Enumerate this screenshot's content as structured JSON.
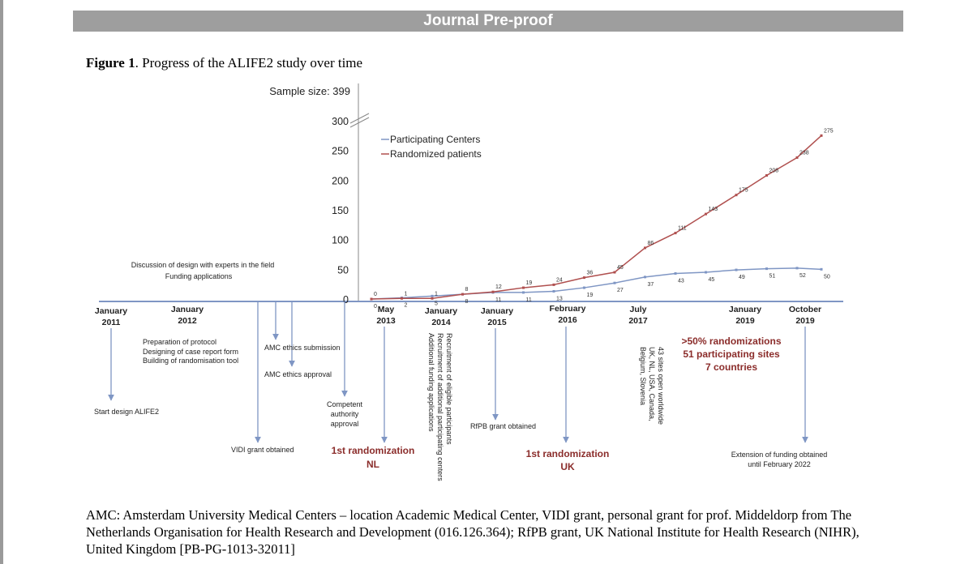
{
  "header": {
    "banner": "Journal Pre-proof"
  },
  "figure": {
    "label": "Figure 1",
    "title": ". Progress of the ALIFE2 study over time"
  },
  "chart_data": {
    "type": "line",
    "title": "",
    "sample_size_label": "Sample size: 399",
    "ylim": [
      0,
      300
    ],
    "y_ticks": [
      "300",
      "250",
      "200",
      "150",
      "100",
      "50",
      "0"
    ],
    "legend_position": "top-left",
    "series": [
      {
        "name": "Participating Centers",
        "color": "#7f96c4",
        "points": [
          {
            "x": 0.0,
            "y": 0,
            "label": "0"
          },
          {
            "x": 0.5,
            "y": 2,
            "label": "2"
          },
          {
            "x": 1.0,
            "y": 5,
            "label": "5"
          },
          {
            "x": 1.5,
            "y": 8,
            "label": "8"
          },
          {
            "x": 2.0,
            "y": 11,
            "label": "11"
          },
          {
            "x": 2.5,
            "y": 11,
            "label": "11"
          },
          {
            "x": 3.0,
            "y": 13,
            "label": "13"
          },
          {
            "x": 3.5,
            "y": 19,
            "label": "19"
          },
          {
            "x": 4.0,
            "y": 27,
            "label": "27"
          },
          {
            "x": 4.5,
            "y": 37,
            "label": "37"
          },
          {
            "x": 5.0,
            "y": 43,
            "label": "43"
          },
          {
            "x": 5.5,
            "y": 45,
            "label": "45"
          },
          {
            "x": 6.0,
            "y": 49,
            "label": "49"
          },
          {
            "x": 6.5,
            "y": 51,
            "label": "51"
          },
          {
            "x": 7.0,
            "y": 52,
            "label": "52"
          },
          {
            "x": 7.4,
            "y": 50,
            "label": "50"
          }
        ]
      },
      {
        "name": "Randomized patients",
        "color": "#b0504f",
        "points": [
          {
            "x": 0.0,
            "y": 0,
            "label": "0"
          },
          {
            "x": 0.5,
            "y": 1,
            "label": "1"
          },
          {
            "x": 1.0,
            "y": 1,
            "label": "1"
          },
          {
            "x": 1.5,
            "y": 8,
            "label": "8"
          },
          {
            "x": 2.0,
            "y": 12,
            "label": "12"
          },
          {
            "x": 2.5,
            "y": 19,
            "label": "19"
          },
          {
            "x": 3.0,
            "y": 24,
            "label": "24"
          },
          {
            "x": 3.5,
            "y": 36,
            "label": "36"
          },
          {
            "x": 4.0,
            "y": 45,
            "label": "45"
          },
          {
            "x": 4.5,
            "y": 86,
            "label": "86"
          },
          {
            "x": 5.0,
            "y": 111,
            "label": "111"
          },
          {
            "x": 5.5,
            "y": 143,
            "label": "143"
          },
          {
            "x": 6.0,
            "y": 175,
            "label": "175"
          },
          {
            "x": 6.5,
            "y": 208,
            "label": "208"
          },
          {
            "x": 7.0,
            "y": 238,
            "label": "238"
          },
          {
            "x": 7.4,
            "y": 275,
            "label": "275"
          }
        ]
      }
    ],
    "x_date_labels": [
      {
        "l1": "January",
        "l2": "2011"
      },
      {
        "l1": "January",
        "l2": "2012"
      },
      {
        "l1": "May",
        "l2": "2013"
      },
      {
        "l1": "January",
        "l2": "2014"
      },
      {
        "l1": "January",
        "l2": "2015"
      },
      {
        "l1": "February",
        "l2": "2016"
      },
      {
        "l1": "July",
        "l2": "2017"
      },
      {
        "l1": "January",
        "l2": "2019"
      },
      {
        "l1": "October",
        "l2": "2019"
      }
    ],
    "annotations": {
      "discussion": "Discussion of design with experts in the field",
      "funding": "Funding applications",
      "preparation": "Preparation of protocol",
      "designing": "Designing of case report form",
      "building": "Building of randomisation tool",
      "ethics_submission": "AMC ethics submission",
      "ethics_approval": "AMC ethics approval",
      "competent_1": "Competent",
      "competent_2": "authority",
      "competent_3": "approval",
      "start_design": "Start design ALIFE2",
      "vidi": "VIDI grant obtained",
      "first_nl_1": "1st randomization",
      "first_nl_2": "NL",
      "recruit_1": "Recruitment of eligible participants",
      "recruit_2": "Recruitment of additional participating centers",
      "recruit_3": "Additional funding applications",
      "rfpb": "RfPB grant obtained",
      "first_uk_1": "1st randomization",
      "first_uk_2": "UK",
      "sites_1": "43 sites open worldwide",
      "sites_2": "UK, NL, USA, Canada,",
      "sites_3": "Belgium, Slovenia",
      "half_1": ">50% randomizations",
      "half_2": "51 participating sites",
      "half_3": "7 countries",
      "extension_1": "Extension of funding obtained",
      "extension_2": "until February 2022"
    },
    "colors": {
      "blue": "#7f96c4",
      "red": "#b0504f",
      "dark_red": "#8b2d2b",
      "axis": "#7f96c4"
    }
  },
  "caption": {
    "line1": "AMC: Amsterdam University Medical Centers – location Academic Medical Center, VIDI grant, personal grant for prof. Middeldorp from The",
    "line2": "Netherlands Organisation for Health Research and Development (016.126.364); RfPB grant, UK National Institute for Health Research (NIHR),",
    "line3": "United Kingdom [PB-PG-1013-32011]"
  }
}
